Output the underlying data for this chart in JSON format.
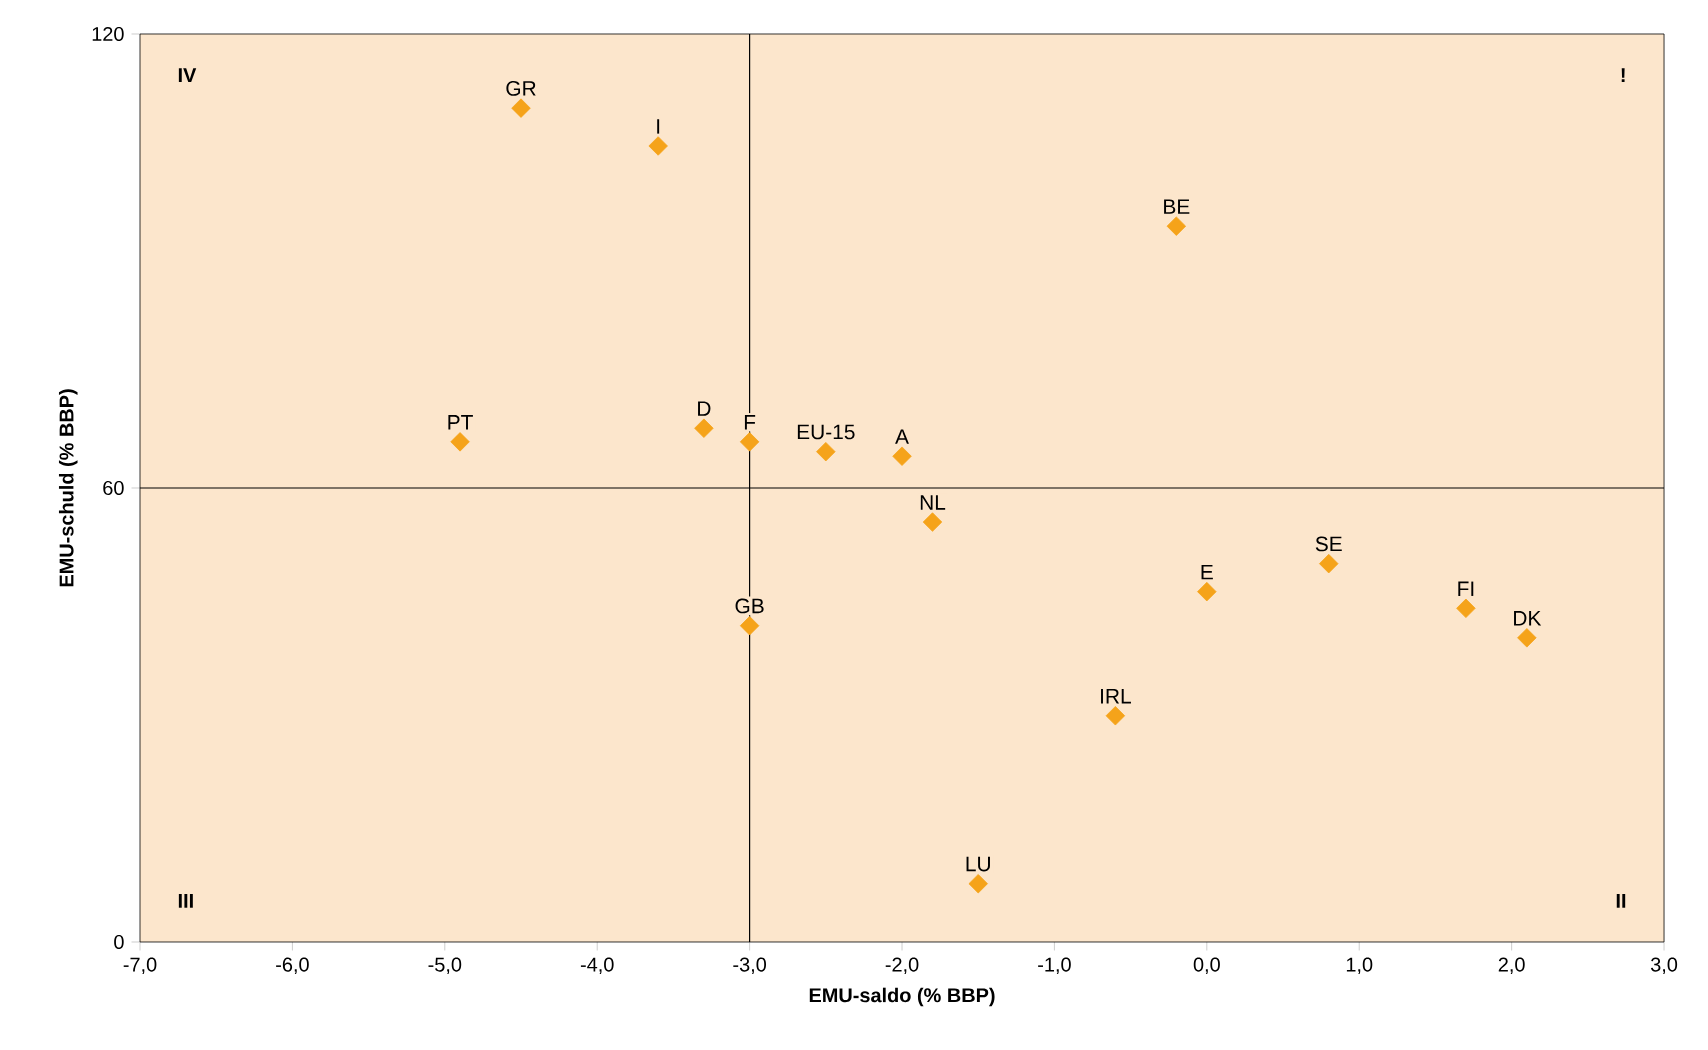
{
  "chart_data": {
    "type": "scatter",
    "xlabel": "EMU-saldo (% BBP)",
    "ylabel": "EMU-schuld (% BBP)",
    "x": [
      -4.5,
      -3.6,
      -0.2,
      -4.9,
      -3.3,
      -3.0,
      -2.5,
      -2.0,
      -1.8,
      -3.0,
      0.0,
      0.8,
      1.7,
      2.1,
      -0.6,
      -1.5
    ],
    "series": [
      {
        "color": "#f5a31a",
        "values": [
          110.2,
          105.2,
          94.6,
          66.1,
          67.9,
          66.1,
          64.8,
          64.2,
          55.5,
          41.8,
          46.3,
          50.0,
          44.1,
          40.2,
          29.9,
          7.7
        ]
      }
    ],
    "marker": "diamond",
    "grid": false,
    "xlim": [
      -7,
      3
    ],
    "ylim": [
      0,
      120
    ],
    "xticks": [
      {
        "value": -7,
        "label": "-7,0"
      },
      {
        "value": -6,
        "label": "-6,0"
      },
      {
        "value": -5,
        "label": "-5,0"
      },
      {
        "value": -4,
        "label": "-4,0"
      },
      {
        "value": -3,
        "label": "-3,0"
      },
      {
        "value": -2,
        "label": "-2,0"
      },
      {
        "value": -1,
        "label": "-1,0"
      },
      {
        "value": 0,
        "label": "0,0"
      },
      {
        "value": 1,
        "label": "1,0"
      },
      {
        "value": 2,
        "label": "2,0"
      },
      {
        "value": 3,
        "label": "3,0"
      }
    ],
    "yticks": [
      0,
      60,
      120
    ],
    "ref_lines": [
      {
        "axis": "x",
        "value": -3,
        "color": "#000000"
      },
      {
        "axis": "y",
        "value": 60,
        "color": "#000000"
      }
    ],
    "annotations": [
      "IV",
      "!",
      "III",
      "II",
      {
        "text": "GR",
        "x": -4.5,
        "y": 110.2
      },
      {
        "text": "I",
        "x": -3.6,
        "y": 105.2
      },
      {
        "text": "BE",
        "x": -0.2,
        "y": 94.6
      },
      {
        "text": "PT",
        "x": -4.9,
        "y": 66.1
      },
      {
        "text": "D",
        "x": -3.3,
        "y": 67.9
      },
      {
        "text": "F",
        "x": -3.0,
        "y": 66.1
      },
      {
        "text": "EU-15",
        "x": -2.5,
        "y": 64.8
      },
      {
        "text": "A",
        "x": -2.0,
        "y": 64.2
      },
      {
        "text": "NL",
        "x": -1.8,
        "y": 55.5
      },
      {
        "text": "GB",
        "x": -3.0,
        "y": 41.8
      },
      {
        "text": "E",
        "x": 0.0,
        "y": 46.3
      },
      {
        "text": "SE",
        "x": 0.8,
        "y": 50.0
      },
      {
        "text": "FI",
        "x": 1.7,
        "y": 44.1
      },
      {
        "text": "DK",
        "x": 2.1,
        "y": 40.2
      },
      {
        "text": "IRL",
        "x": -0.6,
        "y": 29.9
      },
      {
        "text": "LU",
        "x": -1.5,
        "y": 7.7
      }
    ]
  }
}
